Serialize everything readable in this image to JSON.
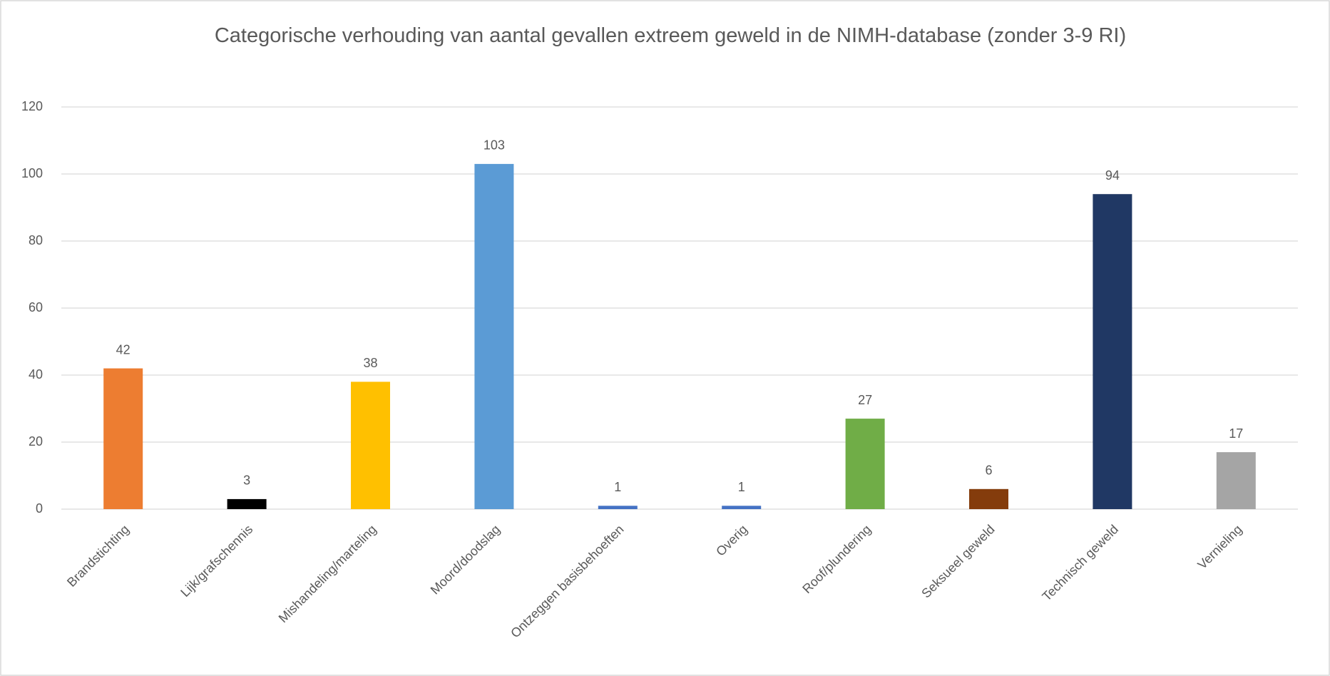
{
  "chart_data": {
    "type": "bar",
    "title": "Categorische verhouding van aantal gevallen extreem geweld in de NIMH-database (zonder 3-9 RI)",
    "categories": [
      "Brandstichting",
      "Lijk/grafschennis",
      "Mishandeling/marteling",
      "Moord/doodslag",
      "Ontzeggen basisbehoeften",
      "Overig",
      "Roof/plundering",
      "Seksueel geweld",
      "Technisch geweld",
      "Vernieling"
    ],
    "values": [
      42,
      3,
      38,
      103,
      1,
      1,
      27,
      6,
      94,
      17
    ],
    "colors": [
      "#ed7d31",
      "#000000",
      "#ffc000",
      "#5b9bd5",
      "#4472c4",
      "#4472c4",
      "#70ad47",
      "#843c0c",
      "#203864",
      "#a5a5a5"
    ],
    "ylim": [
      0,
      120
    ],
    "yticks": [
      0,
      20,
      40,
      60,
      80,
      100,
      120
    ],
    "grid": true
  }
}
